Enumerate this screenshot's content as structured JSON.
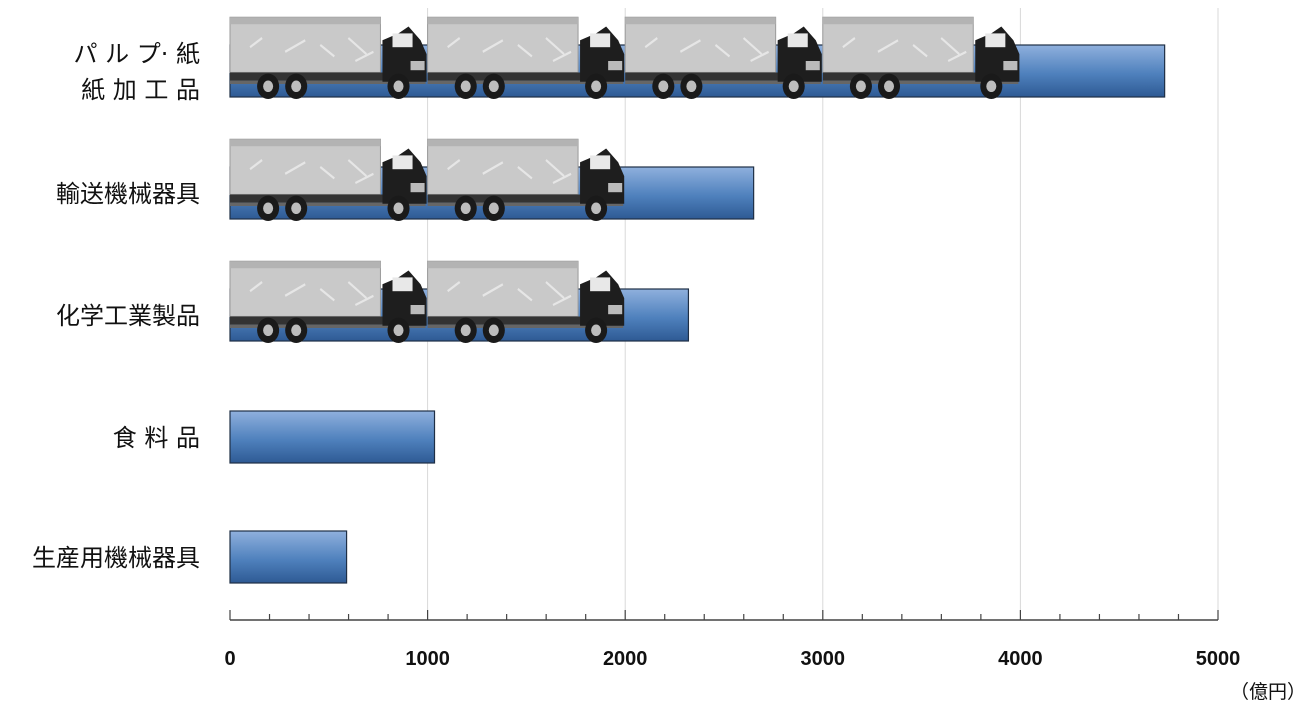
{
  "chart_data": {
    "type": "bar",
    "orientation": "horizontal",
    "categories": [
      [
        "パ ル プ· 紙",
        "紙 加 工 品"
      ],
      [
        "輸送機械器具"
      ],
      [
        "化学工業製品"
      ],
      [
        "食 料 品"
      ],
      [
        "生産用機械器具"
      ]
    ],
    "values": [
      4730,
      2650,
      2320,
      1035,
      590
    ],
    "truck_icons": [
      4,
      2,
      2,
      0,
      0
    ],
    "unit": "（億円）",
    "xlim": [
      0,
      5000
    ],
    "x_ticks": [
      "0",
      "1000",
      "2000",
      "3000",
      "4000",
      "5000"
    ],
    "grid": true,
    "bar_color": "#4f81bd",
    "bar_color_dark": "#2e5a94",
    "icon": "truck-icon"
  }
}
